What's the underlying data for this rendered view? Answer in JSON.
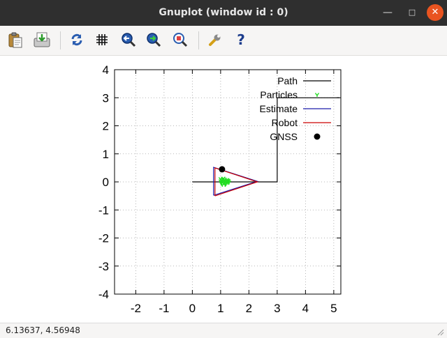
{
  "window": {
    "title": "Gnuplot (window id : 0)"
  },
  "toolbar": {
    "buttons": [
      {
        "name": "copy-to-clipboard",
        "icon": "clipboard-icon"
      },
      {
        "name": "export",
        "icon": "export-icon"
      },
      {
        "name": "replot",
        "icon": "refresh-icon"
      },
      {
        "name": "toggle-grid",
        "icon": "grid-icon"
      },
      {
        "name": "zoom-previous",
        "icon": "zoom-back-icon"
      },
      {
        "name": "zoom-next",
        "icon": "zoom-forward-icon"
      },
      {
        "name": "autoscale",
        "icon": "zoom-fit-icon"
      },
      {
        "name": "settings",
        "icon": "wrench-icon"
      },
      {
        "name": "help",
        "icon": "help-icon"
      }
    ]
  },
  "status": {
    "coords": "6.13637,  4.56948"
  },
  "colors": {
    "path": "#000000",
    "particles": "#22dd22",
    "estimate": "#1a1aaa",
    "robot": "#cc0000",
    "gnss": "#000000"
  },
  "chart_data": {
    "type": "line",
    "title": "",
    "xlabel": "",
    "ylabel": "",
    "xlim": [
      -2.75,
      5.25
    ],
    "ylim": [
      -4,
      4
    ],
    "xticks": [
      "-2",
      "-1",
      "0",
      "1",
      "2",
      "3",
      "4",
      "5"
    ],
    "yticks": [
      "4",
      "3",
      "2",
      "1",
      "0",
      "-1",
      "-2",
      "-3",
      "-4"
    ],
    "grid": true,
    "legend_position": "top-right",
    "legend": [
      "Path",
      "Particles",
      "Estimate",
      "Robot",
      "GNSS"
    ],
    "series": [
      {
        "name": "Path",
        "style": "line",
        "x": [
          0,
          3,
          3,
          5.2
        ],
        "y": [
          0,
          0,
          3,
          3
        ]
      },
      {
        "name": "Particles",
        "style": "points",
        "x": [
          1.0,
          1.05,
          1.1,
          1.15,
          1.2,
          1.25,
          1.3,
          1.02,
          1.08,
          1.12,
          1.18,
          1.22,
          1.28,
          1.0,
          1.06,
          1.14,
          1.2,
          1.26,
          1.1,
          1.16,
          1.04,
          1.24
        ],
        "y": [
          0.02,
          0.06,
          -0.04,
          0.08,
          0.0,
          0.05,
          -0.02,
          -0.06,
          0.1,
          0.0,
          -0.08,
          0.07,
          0.03,
          0.1,
          -0.1,
          0.04,
          -0.05,
          -0.03,
          0.12,
          -0.1,
          -0.02,
          0.01
        ]
      },
      {
        "name": "Estimate",
        "style": "line",
        "x": [
          0.75,
          0.75,
          2.3,
          0.75
        ],
        "y": [
          -0.48,
          0.52,
          0.02,
          -0.48
        ]
      },
      {
        "name": "Robot",
        "style": "line",
        "x": [
          0.8,
          0.8,
          2.3,
          0.8
        ],
        "y": [
          -0.5,
          0.5,
          0.0,
          -0.5
        ]
      },
      {
        "name": "GNSS",
        "style": "points",
        "x": [
          1.05
        ],
        "y": [
          0.45
        ]
      }
    ]
  }
}
